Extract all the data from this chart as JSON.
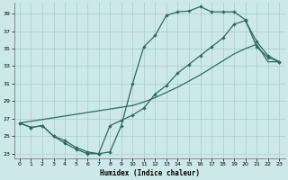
{
  "xlabel": "Humidex (Indice chaleur)",
  "bg_color": "#cce8e8",
  "line_color": "#2d6b60",
  "grid_color": "#b0d0d0",
  "ylim": [
    22.5,
    40.2
  ],
  "xlim": [
    -0.5,
    23.5
  ],
  "yticks": [
    23,
    25,
    27,
    29,
    31,
    33,
    35,
    37,
    39
  ],
  "xticks": [
    0,
    1,
    2,
    3,
    4,
    5,
    6,
    7,
    8,
    9,
    10,
    11,
    12,
    13,
    14,
    15,
    16,
    17,
    18,
    19,
    20,
    21,
    22,
    23
  ],
  "line1_x": [
    0,
    1,
    2,
    3,
    4,
    5,
    6,
    7,
    8,
    9,
    10,
    11,
    12,
    13,
    14,
    15,
    16,
    17,
    18,
    19,
    20,
    21,
    22,
    23
  ],
  "line1_y": [
    26.5,
    26.0,
    26.2,
    25.0,
    24.2,
    23.5,
    23.0,
    23.0,
    23.2,
    26.2,
    31.0,
    35.2,
    36.5,
    38.8,
    39.2,
    39.3,
    39.8,
    39.2,
    39.2,
    39.2,
    38.3,
    35.2,
    34.0,
    33.5
  ],
  "line2_x": [
    0,
    1,
    2,
    3,
    4,
    5,
    6,
    7,
    8,
    9,
    10,
    11,
    12,
    13,
    14,
    15,
    16,
    17,
    18,
    19,
    20,
    21,
    22,
    23
  ],
  "line2_y": [
    26.5,
    26.7,
    26.9,
    27.1,
    27.3,
    27.5,
    27.7,
    27.9,
    28.1,
    28.3,
    28.5,
    28.9,
    29.4,
    30.0,
    30.6,
    31.3,
    32.0,
    32.8,
    33.6,
    34.4,
    35.0,
    35.5,
    33.5,
    33.5
  ],
  "line3_x": [
    0,
    1,
    2,
    3,
    4,
    5,
    6,
    7,
    8,
    9,
    10,
    11,
    12,
    13,
    14,
    15,
    16,
    17,
    18,
    19,
    20,
    21,
    22,
    23
  ],
  "line3_y": [
    26.5,
    26.0,
    26.2,
    25.0,
    24.5,
    23.7,
    23.2,
    23.0,
    26.2,
    26.8,
    27.4,
    28.2,
    29.8,
    30.8,
    32.2,
    33.2,
    34.2,
    35.2,
    36.2,
    37.8,
    38.2,
    35.8,
    34.2,
    33.5
  ]
}
